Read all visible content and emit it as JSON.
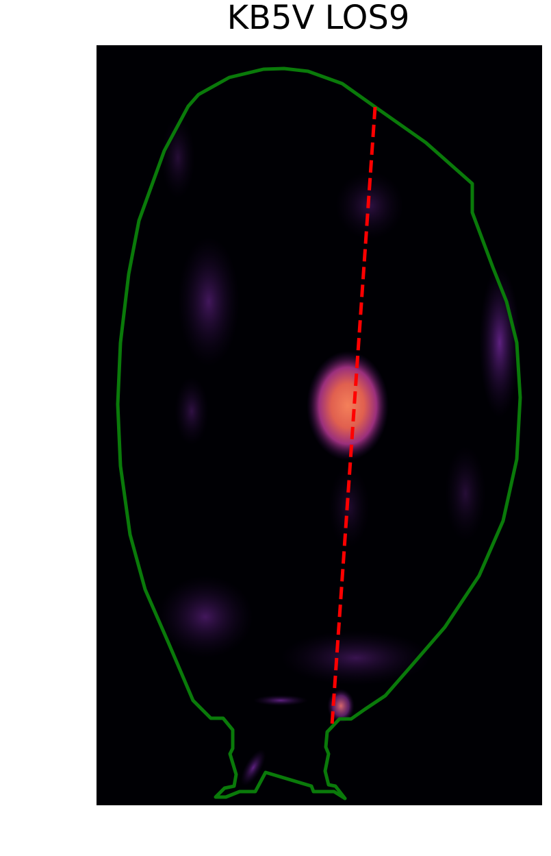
{
  "header": {
    "title": "KB5V LOS9"
  }
}
